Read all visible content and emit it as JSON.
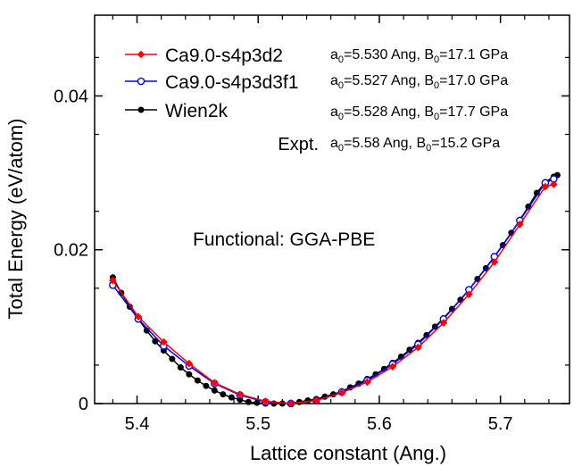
{
  "chart_data": {
    "type": "line",
    "xlabel": "Lattice constant (Ang.)",
    "ylabel": "Total Energy (eV/atom)",
    "xlim": [
      5.365,
      5.757
    ],
    "ylim": [
      0,
      0.0505
    ],
    "x_ticks": [
      5.4,
      5.5,
      5.6,
      5.7
    ],
    "x_tick_labels": [
      "5.4",
      "5.5",
      "5.6",
      "5.7"
    ],
    "y_ticks": [
      0,
      0.02,
      0.04
    ],
    "y_tick_labels": [
      "0",
      "0.02",
      "0.04"
    ],
    "grid": false,
    "legend_position": "top-left",
    "annotation": "Functional: GGA-PBE",
    "series": [
      {
        "name": "Ca9.0-s4p3d2",
        "color": "#ff0000",
        "marker": "diamond-filled",
        "x": [
          5.38,
          5.401,
          5.422,
          5.443,
          5.464,
          5.485,
          5.506,
          5.527,
          5.548,
          5.569,
          5.59,
          5.611,
          5.632,
          5.653,
          5.674,
          5.695,
          5.716,
          5.737,
          5.744
        ],
        "y": [
          0.016,
          0.0113,
          0.008,
          0.0052,
          0.0027,
          0.0012,
          0.0003,
          0.0,
          0.0004,
          0.0014,
          0.0028,
          0.0048,
          0.0073,
          0.0105,
          0.0142,
          0.0184,
          0.0233,
          0.0282,
          0.0285
        ]
      },
      {
        "name": "Ca9.0-s4p3d3f1",
        "color": "#0000ff",
        "marker": "circle-open",
        "x": [
          5.38,
          5.401,
          5.422,
          5.443,
          5.464,
          5.485,
          5.506,
          5.527,
          5.548,
          5.569,
          5.59,
          5.611,
          5.632,
          5.653,
          5.674,
          5.695,
          5.716,
          5.737,
          5.744
        ],
        "y": [
          0.0154,
          0.011,
          0.0075,
          0.0049,
          0.0026,
          0.0011,
          0.0002,
          0.0,
          0.0004,
          0.0015,
          0.003,
          0.0051,
          0.0077,
          0.011,
          0.0148,
          0.0191,
          0.0238,
          0.0287,
          0.0292
        ]
      },
      {
        "name": "Wien2k",
        "color": "#000000",
        "marker": "circle-filled",
        "x": [
          5.38,
          5.387,
          5.394,
          5.401,
          5.408,
          5.415,
          5.422,
          5.429,
          5.436,
          5.443,
          5.45,
          5.457,
          5.464,
          5.471,
          5.478,
          5.485,
          5.492,
          5.499,
          5.506,
          5.513,
          5.52,
          5.527,
          5.534,
          5.541,
          5.548,
          5.555,
          5.562,
          5.569,
          5.576,
          5.583,
          5.59,
          5.597,
          5.604,
          5.611,
          5.618,
          5.625,
          5.632,
          5.639,
          5.646,
          5.653,
          5.66,
          5.667,
          5.674,
          5.681,
          5.688,
          5.695,
          5.702,
          5.709,
          5.716,
          5.723,
          5.73,
          5.737,
          5.744,
          5.747
        ],
        "y": [
          0.0164,
          0.0144,
          0.0126,
          0.011,
          0.0095,
          0.0081,
          0.0069,
          0.0058,
          0.0047,
          0.0038,
          0.003,
          0.0023,
          0.0017,
          0.0012,
          0.0008,
          0.0005,
          0.0002,
          0.0001,
          0.0,
          0.0,
          0.0,
          0.0001,
          0.0002,
          0.0004,
          0.0006,
          0.0009,
          0.0012,
          0.0016,
          0.0021,
          0.0026,
          0.0032,
          0.0038,
          0.0045,
          0.0053,
          0.0061,
          0.007,
          0.0079,
          0.0089,
          0.01,
          0.0111,
          0.0123,
          0.0135,
          0.0148,
          0.0162,
          0.0176,
          0.0191,
          0.0206,
          0.0222,
          0.0239,
          0.0256,
          0.0274,
          0.0288,
          0.0295,
          0.0297
        ]
      }
    ],
    "legend_params": [
      {
        "a0_prefix": "a",
        "a0_sub": "0",
        "a0_value": "=5.530 Ang, B",
        "b0_sub": "0",
        "b0_value": "=17.1 GPa"
      },
      {
        "a0_prefix": "a",
        "a0_sub": "0",
        "a0_value": "=5.527 Ang, B",
        "b0_sub": "0",
        "b0_value": "=17.0 GPa"
      },
      {
        "a0_prefix": "a",
        "a0_sub": "0",
        "a0_value": "=5.528 Ang, B",
        "b0_sub": "0",
        "b0_value": "=17.7 GPa"
      }
    ],
    "expt": {
      "label": "Expt.",
      "a0_prefix": "a",
      "a0_sub": "0",
      "a0_value": "=5.58 Ang,  B",
      "b0_sub": "0",
      "b0_value": "=15.2 GPa"
    }
  }
}
